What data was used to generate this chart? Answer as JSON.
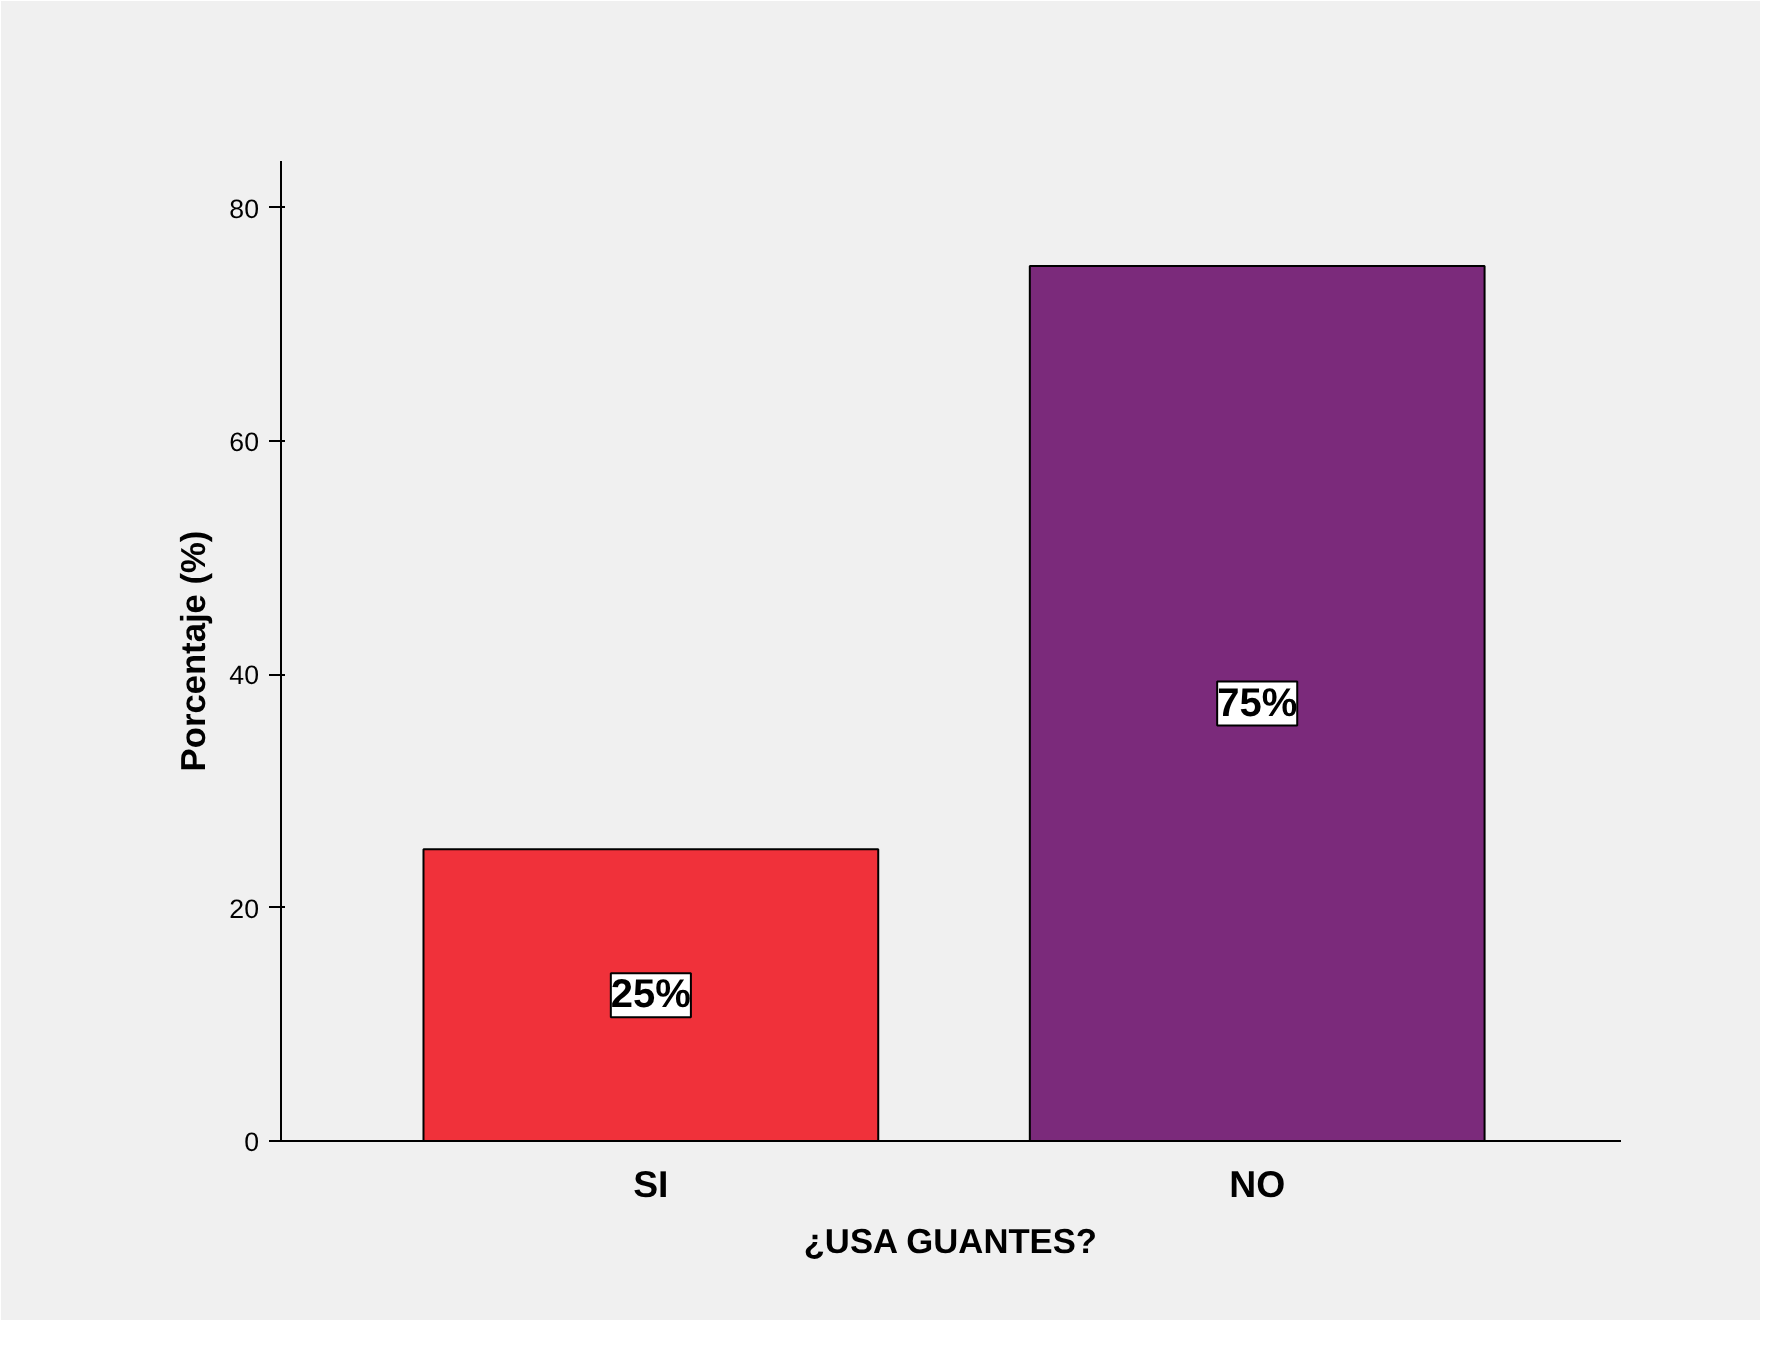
{
  "chart_data": {
    "type": "bar",
    "categories": [
      "SI",
      "NO"
    ],
    "values": [
      25,
      75
    ],
    "colors": [
      "#f0313a",
      "#7b2a7b"
    ],
    "value_labels": [
      "25%",
      "75%"
    ],
    "xlabel": "¿USA GUANTES?",
    "ylabel": "Porcentaje (%)",
    "ylim": [
      0,
      84
    ],
    "yticks": [
      0,
      20,
      40,
      60,
      80
    ],
    "grid": false
  }
}
